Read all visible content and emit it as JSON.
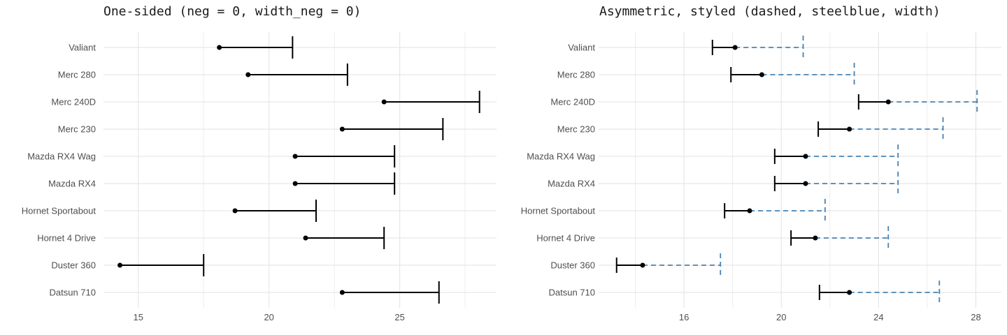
{
  "figure": {
    "background_color": "#ffffff",
    "grid_major_color": "#e2e2e2",
    "grid_minor_color": "#ededed",
    "axis_text_color": "#4f4f4f",
    "title_color": "#1a1a1a",
    "point_color": "#000000",
    "steelblue_color": "#4682b4"
  },
  "chart_data": [
    {
      "type": "scatter",
      "subtype": "horizontal-dot-errorbar",
      "title": "One-sided (neg = 0, width_neg = 0)",
      "categories": [
        "Valiant",
        "Merc 280",
        "Merc 240D",
        "Merc 230",
        "Mazda RX4 Wag",
        "Mazda RX4",
        "Hornet Sportabout",
        "Hornet 4 Drive",
        "Duster 360",
        "Datsun 710"
      ],
      "x": [
        18.1,
        19.2,
        24.4,
        22.8,
        21.0,
        21.0,
        18.7,
        21.4,
        14.3,
        22.8
      ],
      "xerr_pos": [
        2.8,
        3.8,
        3.65,
        3.85,
        3.8,
        3.8,
        3.1,
        3.0,
        3.2,
        3.7
      ],
      "xerr_neg": [
        0,
        0,
        0,
        0,
        0,
        0,
        0,
        0,
        0,
        0
      ],
      "xlim": [
        13.67,
        28.7
      ],
      "x_ticks_major": [
        15,
        20,
        25
      ],
      "x_tick_labels": [
        "15",
        "20",
        "25"
      ],
      "x_ticks_minor": [
        17.5,
        22.5,
        27.5
      ],
      "xlabel": "",
      "ylabel": "",
      "grid": true,
      "legend": false,
      "style": {
        "point_color": "#000000",
        "neg": null,
        "pos": {
          "color": "#000000",
          "dash": null,
          "cap_half": 16,
          "line_width": 2
        }
      }
    },
    {
      "type": "scatter",
      "subtype": "horizontal-dot-errorbar",
      "title": "Asymmetric, styled (dashed, steelblue, width)",
      "categories": [
        "Valiant",
        "Merc 280",
        "Merc 240D",
        "Merc 230",
        "Mazda RX4 Wag",
        "Mazda RX4",
        "Hornet Sportabout",
        "Hornet 4 Drive",
        "Duster 360",
        "Datsun 710"
      ],
      "x": [
        18.1,
        19.2,
        24.4,
        22.8,
        21.0,
        21.0,
        18.7,
        21.4,
        14.3,
        22.8
      ],
      "xerr_pos": [
        2.8,
        3.8,
        3.65,
        3.85,
        3.8,
        3.8,
        3.1,
        3.0,
        3.2,
        3.7
      ],
      "xerr_neg": [
        0.93,
        1.27,
        1.22,
        1.28,
        1.27,
        1.27,
        1.03,
        1.0,
        1.07,
        1.23
      ],
      "xlim": [
        12.49,
        29.05
      ],
      "x_ticks_major": [
        16,
        20,
        24,
        28
      ],
      "x_tick_labels": [
        "16",
        "20",
        "24",
        "28"
      ],
      "x_ticks_minor": [
        14,
        18,
        22,
        26
      ],
      "xlabel": "",
      "ylabel": "",
      "grid": true,
      "legend": false,
      "style": {
        "point_color": "#000000",
        "neg": {
          "color": "#000000",
          "dash": null,
          "cap_half": 11,
          "line_width": 2
        },
        "pos": {
          "color": "#4682b4",
          "dash": "7 5",
          "cap_half": 17,
          "line_width": 1.8
        }
      }
    }
  ]
}
